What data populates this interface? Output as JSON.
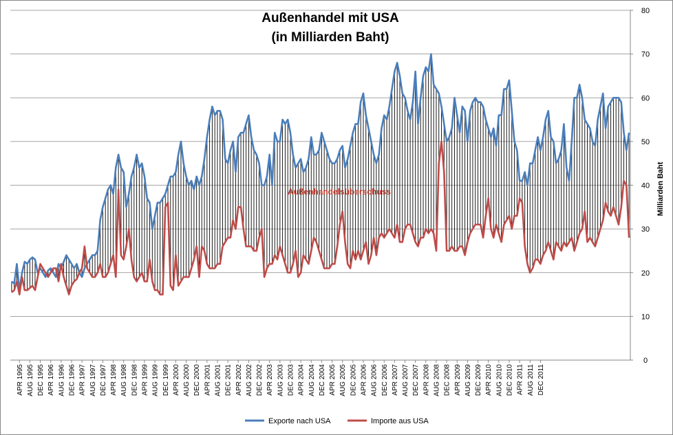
{
  "chart_data": {
    "type": "line",
    "title": "Außenhandel mit USA",
    "subtitle": "(in Milliarden Baht)",
    "ylabel": "Milliarden Baht",
    "xlabel": "",
    "ylim": [
      0,
      80
    ],
    "yticks": [
      0,
      10,
      20,
      30,
      40,
      50,
      60,
      70,
      80
    ],
    "y_axis_side": "right",
    "x_start": "JAN 1995",
    "x_end": "DEC 2011",
    "x_tick_labels": [
      "APR 1995",
      "AUG 1995",
      "DEC 1995",
      "APR 1996",
      "AUG 1996",
      "DEC 1996",
      "APR 1997",
      "AUG 1997",
      "DEC 1997",
      "APR 1998",
      "AUG 1998",
      "DEC 1998",
      "APR 1999",
      "AUG 1999",
      "DEC 1999",
      "APR 2000",
      "AUG 2000",
      "DEC 2000",
      "APR 2001",
      "AUG 2001",
      "DEC 2001",
      "APR 2002",
      "AUG 2002",
      "DEC 2002",
      "APR 2003",
      "AUG 2003",
      "DEC 2003",
      "APR 2004",
      "AUG 2004",
      "DEC 2004",
      "APR 2005",
      "AUG 2005",
      "DEC 2005",
      "APR 2006",
      "AUG 2006",
      "DEC 2006",
      "APR 2007",
      "AUG 2007",
      "DEC 2007",
      "APR 2008",
      "AUG 2008",
      "DEC 2008",
      "APR 2009",
      "AUG 2009",
      "DEC 2009",
      "APR 2010",
      "AUG 2010",
      "DEC 2010",
      "APR 2011",
      "AUG 2011",
      "DEC 2011"
    ],
    "annotation": "Außenhandelsüberschuss",
    "legend_position": "bottom",
    "grid": true,
    "series": [
      {
        "name": "Exporte nach USA",
        "color": "#4a7ebb",
        "values": [
          18,
          17.5,
          22,
          16,
          20,
          22.5,
          22,
          23,
          23.5,
          23,
          20,
          21,
          20,
          19,
          20.5,
          21,
          20,
          19,
          22,
          21,
          22.5,
          24,
          23,
          22,
          21,
          22,
          20,
          19,
          21,
          22,
          23,
          24,
          24,
          25,
          32,
          35,
          37,
          39,
          40,
          38,
          44,
          47,
          44,
          43,
          35,
          38,
          42,
          44,
          47,
          44,
          45,
          42,
          37,
          36,
          30,
          33,
          36,
          36,
          37,
          38,
          40,
          42,
          42,
          43,
          47,
          50,
          45,
          42,
          40,
          41,
          39,
          42,
          40,
          42,
          46,
          51,
          55,
          58,
          56,
          57,
          57,
          55,
          46,
          45,
          48,
          50,
          43,
          51,
          52,
          52,
          54,
          56,
          51,
          48,
          47,
          45,
          40,
          40,
          42,
          47,
          40,
          52,
          50,
          50,
          55,
          54,
          55,
          52,
          47,
          44,
          45,
          46,
          43,
          44,
          46,
          51,
          47,
          47,
          48,
          52,
          50,
          48,
          46,
          45,
          45,
          46,
          48,
          49,
          44,
          46,
          49,
          52,
          54,
          54,
          59,
          61,
          56,
          53,
          50,
          47,
          45,
          47,
          53,
          56,
          55,
          58,
          62,
          66,
          68,
          65,
          61,
          60,
          57,
          55,
          59,
          66,
          54,
          60,
          65,
          67,
          66,
          70,
          63,
          62,
          61,
          58,
          54,
          50,
          51,
          53,
          60,
          56,
          52,
          58,
          57,
          50,
          57,
          59,
          60,
          59,
          59,
          58,
          55,
          53,
          51,
          53,
          49,
          56,
          56,
          62,
          62,
          64,
          57,
          50,
          48,
          41,
          41,
          43,
          40,
          45,
          45,
          48,
          51,
          48,
          51,
          55,
          57,
          51,
          50,
          45,
          46,
          48,
          54,
          44,
          41,
          50,
          60,
          60,
          63,
          60,
          55,
          54,
          53,
          50,
          49,
          55,
          58,
          61,
          53,
          58,
          59,
          60,
          60,
          60,
          59,
          52,
          48,
          52
        ]
      },
      {
        "name": "Importe aus USA",
        "color": "#be4b48",
        "values": [
          15.5,
          16,
          18,
          15,
          19,
          16,
          16,
          16.5,
          17,
          16,
          19,
          22,
          21,
          20,
          19,
          20,
          21,
          21,
          18,
          22,
          19,
          17,
          15,
          17,
          18,
          18.5,
          20,
          21,
          26,
          21,
          20,
          19,
          19,
          20,
          22,
          19,
          19,
          20,
          22,
          24,
          19,
          39,
          24,
          23,
          26,
          30,
          23,
          19,
          18,
          19,
          20,
          18,
          18,
          23,
          18,
          16,
          16,
          15,
          15,
          35,
          36,
          17,
          16,
          24,
          17,
          18,
          19,
          19,
          19,
          21,
          23,
          26,
          19,
          26,
          25,
          22,
          21,
          21,
          21,
          22,
          22,
          26,
          27,
          28,
          28,
          32,
          30,
          35,
          35,
          30,
          26,
          26,
          26,
          25,
          25,
          28,
          30,
          19,
          21,
          22,
          22,
          24,
          23,
          26,
          24,
          22,
          20,
          20,
          22,
          25,
          19,
          20,
          24,
          23,
          22,
          25,
          28,
          27,
          25,
          23,
          21,
          21,
          21,
          22,
          22,
          26,
          31,
          34,
          27,
          22,
          21,
          25,
          23,
          25,
          23,
          25,
          27,
          22,
          24,
          28,
          24,
          28,
          29,
          28,
          29,
          30,
          29,
          28,
          31,
          27,
          27,
          30,
          31,
          31,
          29,
          27,
          26,
          28,
          28,
          30,
          29,
          30,
          29,
          25,
          45,
          50,
          43,
          25,
          25,
          26,
          25,
          25,
          26,
          26,
          24,
          27,
          29,
          30,
          31,
          31,
          31,
          28,
          33,
          37,
          30,
          28,
          31,
          29,
          27,
          31,
          32,
          33,
          30,
          33,
          33,
          37,
          36,
          26,
          22,
          20,
          21,
          23,
          23,
          22,
          24,
          25,
          27,
          25,
          23,
          27,
          26,
          25,
          27,
          26,
          27,
          28,
          25,
          27,
          29,
          30,
          34,
          27,
          28,
          27,
          26,
          28,
          30,
          32,
          36,
          34,
          33,
          35,
          33,
          31,
          35,
          41,
          40,
          28
        ]
      }
    ]
  }
}
